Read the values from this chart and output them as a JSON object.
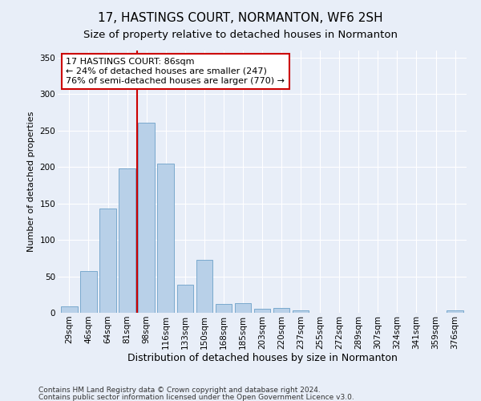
{
  "title": "17, HASTINGS COURT, NORMANTON, WF6 2SH",
  "subtitle": "Size of property relative to detached houses in Normanton",
  "xlabel": "Distribution of detached houses by size in Normanton",
  "ylabel": "Number of detached properties",
  "categories": [
    "29sqm",
    "46sqm",
    "64sqm",
    "81sqm",
    "98sqm",
    "116sqm",
    "133sqm",
    "150sqm",
    "168sqm",
    "185sqm",
    "203sqm",
    "220sqm",
    "237sqm",
    "255sqm",
    "272sqm",
    "289sqm",
    "307sqm",
    "324sqm",
    "341sqm",
    "359sqm",
    "376sqm"
  ],
  "values": [
    9,
    57,
    143,
    198,
    261,
    204,
    39,
    73,
    12,
    13,
    6,
    7,
    3,
    0,
    0,
    0,
    0,
    0,
    0,
    0,
    3
  ],
  "bar_color": "#b8d0e8",
  "bar_edge_color": "#6ca0c8",
  "property_line_color": "#cc0000",
  "annotation_text": "17 HASTINGS COURT: 86sqm\n← 24% of detached houses are smaller (247)\n76% of semi-detached houses are larger (770) →",
  "annotation_box_color": "#ffffff",
  "annotation_box_edge": "#cc0000",
  "ylim": [
    0,
    360
  ],
  "yticks": [
    0,
    50,
    100,
    150,
    200,
    250,
    300,
    350
  ],
  "footer1": "Contains HM Land Registry data © Crown copyright and database right 2024.",
  "footer2": "Contains public sector information licensed under the Open Government Licence v3.0.",
  "bg_color": "#e8eef8",
  "plot_bg_color": "#e8eef8",
  "grid_color": "#ffffff",
  "title_fontsize": 11,
  "subtitle_fontsize": 9.5,
  "xlabel_fontsize": 9,
  "ylabel_fontsize": 8,
  "tick_fontsize": 7.5,
  "annotation_fontsize": 8,
  "footer_fontsize": 6.5
}
